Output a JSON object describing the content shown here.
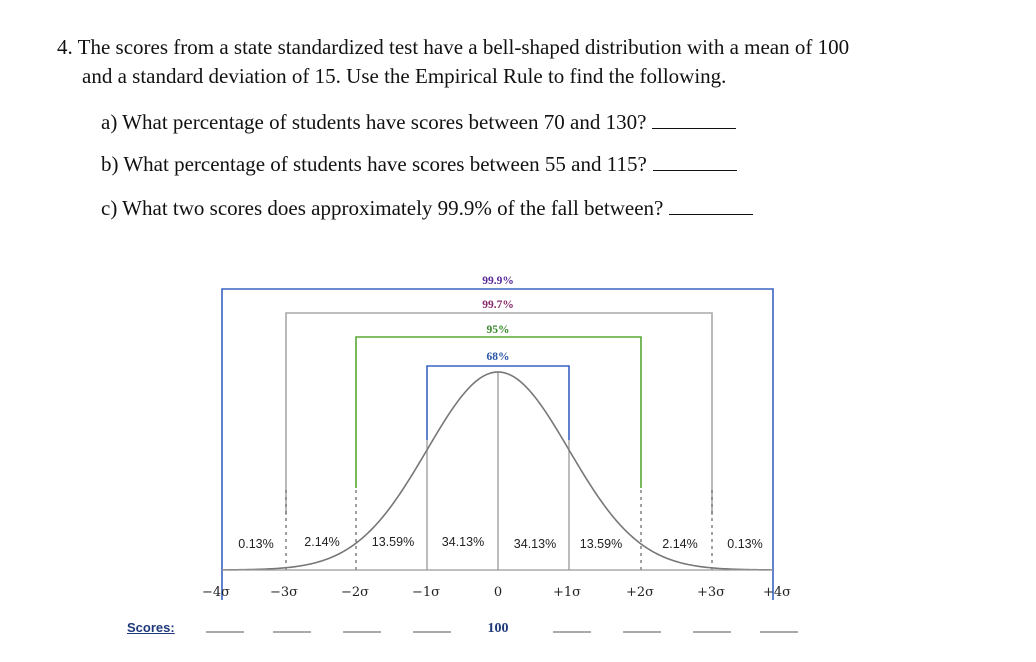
{
  "question": {
    "line1": "4. The scores from a state standardized test have a bell-shaped distribution with a mean of 100",
    "line2": "and a standard deviation of 15. Use the Empirical Rule to find the following.",
    "parts": [
      {
        "text": "a) What percentage of students have scores between 70 and 130?"
      },
      {
        "text": "b) What percentage of students have scores between 55 and 115?"
      },
      {
        "text": "c) What two scores does approximately 99.9% of the fall between?"
      }
    ]
  },
  "figure": {
    "bracket_labels": [
      "99.9%",
      "99.7%",
      "95%",
      "68%"
    ],
    "bracket_colors": [
      "#3a64c2",
      "#a0a0a0",
      "#5aa833",
      "#3a64c2"
    ],
    "bracket_label_colors": [
      "#5a2a9a",
      "#8a2a6a",
      "#3a8a2a",
      "#2a56a8"
    ],
    "region_percents": [
      "0.13%",
      "2.14%",
      "13.59%",
      "34.13%",
      "34.13%",
      "13.59%",
      "2.14%",
      "0.13%"
    ],
    "sigma_labels": [
      "−4σ",
      "−3σ",
      "−2σ",
      "−1σ",
      "0",
      "+1σ",
      "+2σ",
      "+3σ",
      "+4σ"
    ],
    "scores_label": "Scores:",
    "mean_score": "100"
  }
}
